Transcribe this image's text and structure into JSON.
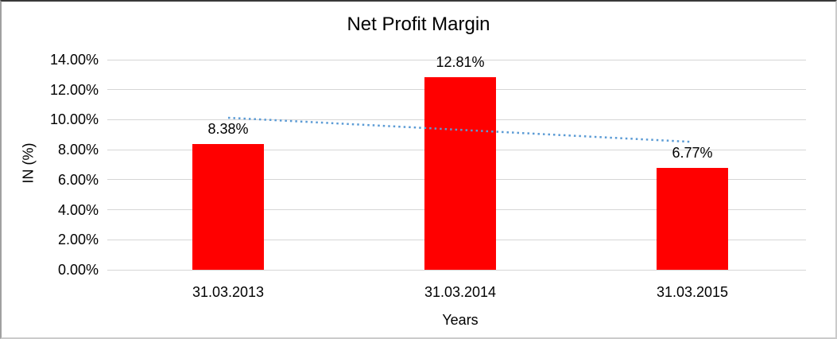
{
  "chart_data": {
    "type": "bar",
    "title": "Net Profit Margin",
    "categories": [
      "31.03.2013",
      "31.03.2014",
      "31.03.2015"
    ],
    "values": [
      8.38,
      12.81,
      6.77
    ],
    "value_labels": [
      "8.38%",
      "12.81%",
      "6.77%"
    ],
    "xlabel": "Years",
    "ylabel": "IN (%)",
    "ylim": [
      0,
      14
    ],
    "ytick_step": 2,
    "ytick_labels": [
      "0.00%",
      "2.00%",
      "4.00%",
      "6.00%",
      "8.00%",
      "10.00%",
      "12.00%",
      "14.00%"
    ],
    "grid": true,
    "legend": "none",
    "colors": {
      "bar": "#FF0000",
      "trendline": "#5B9BD5",
      "gridline": "#D6D6D6",
      "text": "#000000",
      "background": "#FFFFFF"
    },
    "trendline": {
      "type": "linear",
      "style": "dotted",
      "start_value": 10.13,
      "end_value": 8.52
    }
  }
}
